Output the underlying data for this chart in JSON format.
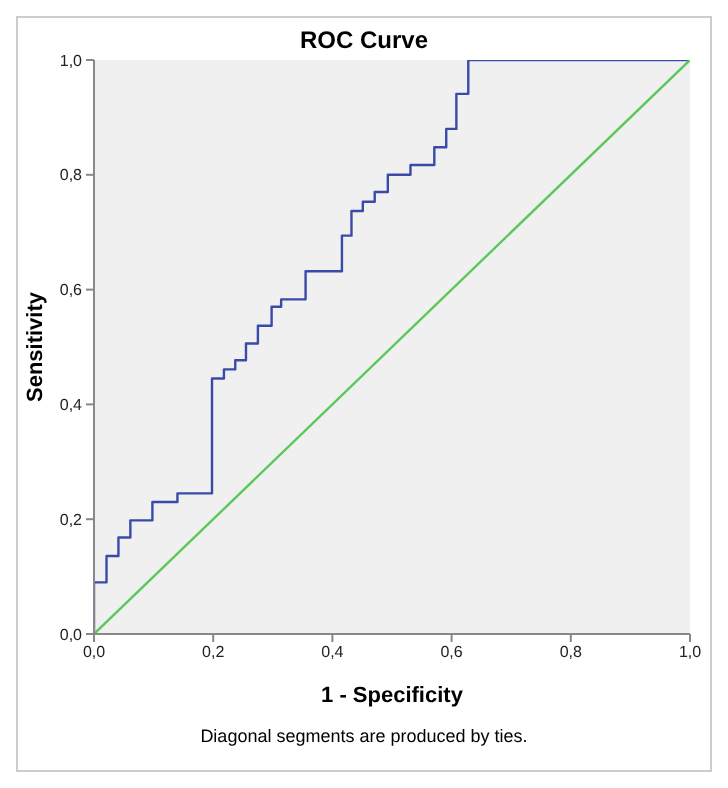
{
  "chart_data": {
    "type": "line",
    "title": "ROC Curve",
    "xlabel": "1 - Specificity",
    "ylabel": "Sensitivity",
    "series": [
      {
        "color": "#3b4aa8",
        "x": [
          0,
          0,
          0.021,
          0.021,
          0.041,
          0.041,
          0.061,
          0.061,
          0.098,
          0.098,
          0.14,
          0.14,
          0.198,
          0.198,
          0.218,
          0.218,
          0.237,
          0.237,
          0.255,
          0.255,
          0.275,
          0.275,
          0.298,
          0.298,
          0.314,
          0.314,
          0.355,
          0.355,
          0.416,
          0.416,
          0.432,
          0.432,
          0.451,
          0.451,
          0.471,
          0.471,
          0.493,
          0.493,
          0.531,
          0.531,
          0.571,
          0.571,
          0.591,
          0.591,
          0.608,
          0.608,
          0.628,
          0.628,
          1
        ],
        "values": [
          0,
          0.09,
          0.09,
          0.136,
          0.136,
          0.168,
          0.168,
          0.198,
          0.198,
          0.23,
          0.23,
          0.245,
          0.245,
          0.445,
          0.445,
          0.461,
          0.461,
          0.477,
          0.477,
          0.506,
          0.506,
          0.537,
          0.537,
          0.57,
          0.57,
          0.583,
          0.583,
          0.632,
          0.632,
          0.694,
          0.694,
          0.737,
          0.737,
          0.753,
          0.753,
          0.77,
          0.77,
          0.8,
          0.8,
          0.817,
          0.817,
          0.848,
          0.848,
          0.88,
          0.88,
          0.941,
          0.941,
          1,
          1
        ]
      },
      {
        "color": "#5cc85c",
        "x": [
          0,
          1
        ],
        "values": [
          0,
          1
        ]
      }
    ],
    "xlim": [
      0,
      1
    ],
    "ylim": [
      0,
      1
    ],
    "xticks": [
      {
        "value": 0,
        "label": "0,0"
      },
      {
        "value": 0.2,
        "label": "0,2"
      },
      {
        "value": 0.4,
        "label": "0,4"
      },
      {
        "value": 0.6,
        "label": "0,6"
      },
      {
        "value": 0.8,
        "label": "0,8"
      },
      {
        "value": 1,
        "label": "1,0"
      }
    ],
    "yticks": [
      {
        "value": 0,
        "label": "0,0"
      },
      {
        "value": 0.2,
        "label": "0,2"
      },
      {
        "value": 0.4,
        "label": "0,4"
      },
      {
        "value": 0.6,
        "label": "0,6"
      },
      {
        "value": 0.8,
        "label": "0,8"
      },
      {
        "value": 1,
        "label": "1,0"
      }
    ],
    "grid": false,
    "legend": false,
    "marker": "none",
    "line_style": "solid",
    "annotations": [
      "Diagonal segments are produced by ties."
    ]
  }
}
